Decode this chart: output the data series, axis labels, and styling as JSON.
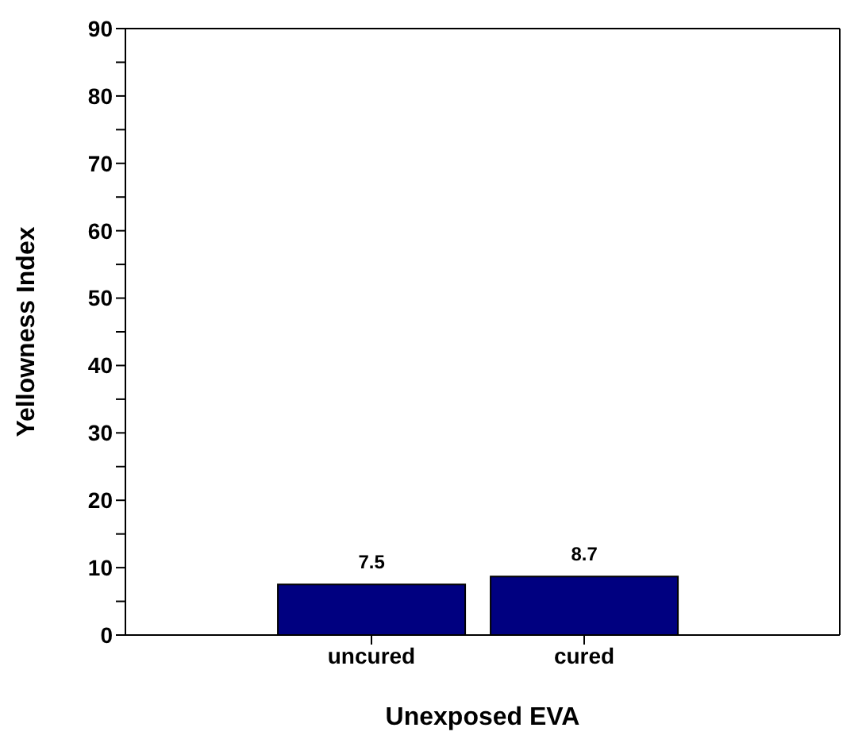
{
  "chart_data": {
    "type": "bar",
    "xlabel": "Unexposed EVA",
    "ylabel": "Yellowness Index",
    "categories": [
      "uncured",
      "cured"
    ],
    "values": [
      7.5,
      8.7
    ],
    "color": "#000080",
    "data_labels": true,
    "grid": false,
    "legend": false,
    "ylim": [
      0,
      90
    ],
    "yticks": [
      0,
      {
        "value": 5,
        "label": null
      },
      10,
      {
        "value": 15,
        "label": null
      },
      20,
      {
        "value": 25,
        "label": null
      },
      30,
      {
        "value": 35,
        "label": null
      },
      40,
      {
        "value": 45,
        "label": null
      },
      50,
      {
        "value": 55,
        "label": null
      },
      60,
      {
        "value": 65,
        "label": null
      },
      70,
      {
        "value": 75,
        "label": null
      },
      80,
      {
        "value": 85,
        "label": null
      },
      90
    ]
  }
}
